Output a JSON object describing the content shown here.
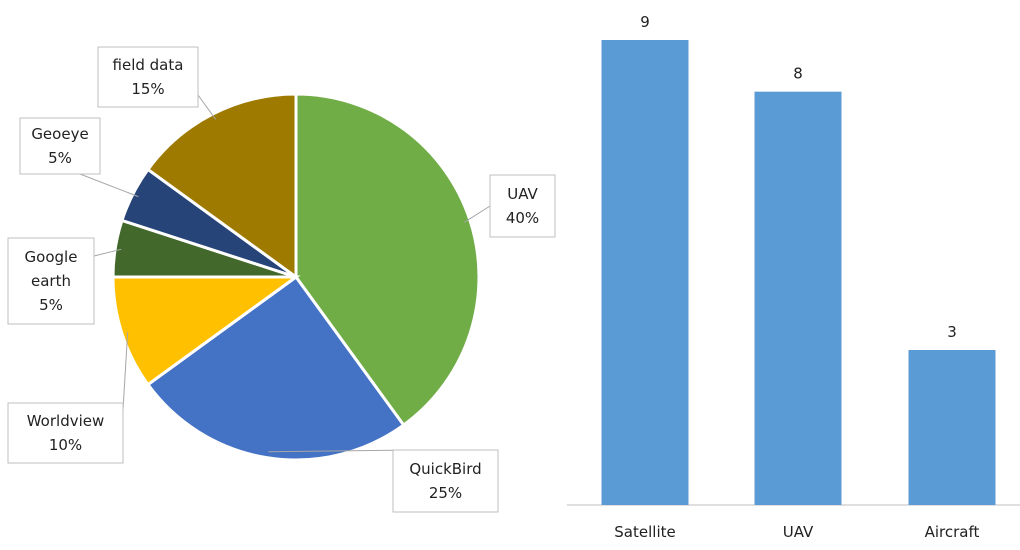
{
  "chart_data": [
    {
      "type": "pie",
      "slices": [
        {
          "label_lines": [
            "UAV",
            "40%"
          ],
          "name": "UAV",
          "percent": 40,
          "color": "#70AD47"
        },
        {
          "label_lines": [
            "QuickBird",
            "25%"
          ],
          "name": "QuickBird",
          "percent": 25,
          "color": "#4472C4"
        },
        {
          "label_lines": [
            "Worldview",
            "10%"
          ],
          "name": "Worldview",
          "percent": 10,
          "color": "#FFC000"
        },
        {
          "label_lines": [
            "Google",
            "earth",
            "5%"
          ],
          "name": "Google earth",
          "percent": 5,
          "color": "#43682B"
        },
        {
          "label_lines": [
            "Geoeye",
            "5%"
          ],
          "name": "Geoeye",
          "percent": 5,
          "color": "#264478"
        },
        {
          "label_lines": [
            "field data",
            "15%"
          ],
          "name": "field data",
          "percent": 15,
          "color": "#9E7A00"
        }
      ],
      "start": "12 o'clock",
      "direction": "clockwise",
      "labels": "callouts with leader lines"
    },
    {
      "type": "bar",
      "categories": [
        "Satellite",
        "UAV",
        "Aircraft"
      ],
      "values": [
        9,
        8,
        3
      ],
      "value_labels": [
        "9",
        "8",
        "3"
      ],
      "ylim": [
        0,
        9
      ],
      "color": "#5B9BD5",
      "grid": false,
      "legend": "none"
    }
  ]
}
